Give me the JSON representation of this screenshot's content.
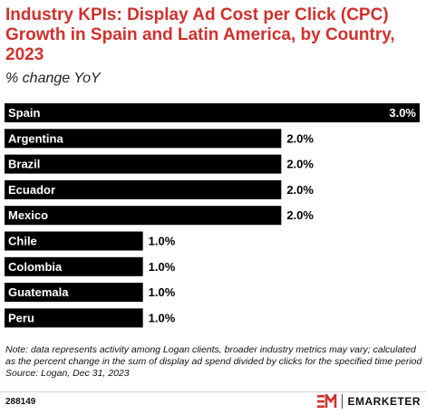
{
  "header": {
    "title": "Industry KPIs: Display Ad Cost per Click (CPC) Growth in Spain and Latin America, by Country, 2023",
    "subtitle": "% change YoY"
  },
  "chart_data": {
    "type": "bar",
    "orientation": "horizontal",
    "categories": [
      "Spain",
      "Argentina",
      "Brazil",
      "Ecuador",
      "Mexico",
      "Chile",
      "Colombia",
      "Guatemala",
      "Peru"
    ],
    "values": [
      3.0,
      2.0,
      2.0,
      2.0,
      2.0,
      1.0,
      1.0,
      1.0,
      1.0
    ],
    "value_labels": [
      "3.0%",
      "2.0%",
      "2.0%",
      "2.0%",
      "2.0%",
      "1.0%",
      "1.0%",
      "1.0%",
      "1.0%"
    ],
    "xlim": [
      0,
      3.0
    ],
    "grid": false,
    "bar_color": "#000000",
    "label_color": "#ffffff"
  },
  "footer": {
    "note": "Note: data represents activity among Logan clients, broader industry metrics may vary; calculated as the percent change in the sum of display ad spend divided by clicks for the specified time period",
    "source": "Source: Logan, Dec 31, 2023",
    "chart_id": "288149",
    "brand_mark": "EM",
    "brand_name": "EMARKETER",
    "brand_color": "#d0312d"
  }
}
